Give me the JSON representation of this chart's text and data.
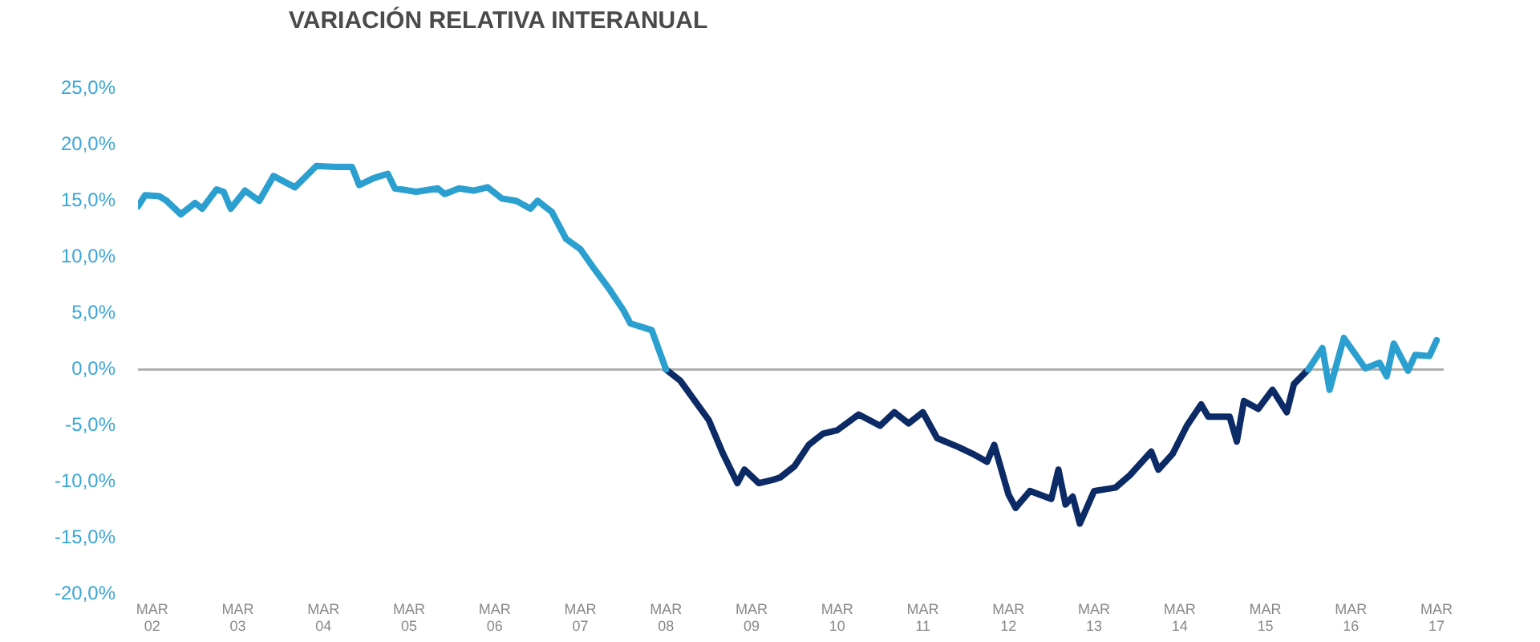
{
  "chart_data": {
    "type": "line",
    "title": "VARIACIÓN RELATIVA INTERANUAL",
    "x": [
      "2002-01",
      "2002-02",
      "2002-04",
      "2002-05",
      "2002-07",
      "2002-09",
      "2002-10",
      "2002-12",
      "2003-01",
      "2003-02",
      "2003-04",
      "2003-06",
      "2003-08",
      "2003-11",
      "2004-02",
      "2004-05",
      "2004-07",
      "2004-08",
      "2004-10",
      "2004-12",
      "2005-01",
      "2005-04",
      "2005-07",
      "2005-08",
      "2005-10",
      "2005-12",
      "2006-02",
      "2006-04",
      "2006-06",
      "2006-08",
      "2006-09",
      "2006-11",
      "2007-01",
      "2007-03",
      "2007-05",
      "2007-07",
      "2007-09",
      "2007-10",
      "2008-01",
      "2008-03",
      "2008-05",
      "2008-09",
      "2008-11",
      "2009-01",
      "2009-02",
      "2009-04",
      "2009-06",
      "2009-07",
      "2009-09",
      "2009-11",
      "2010-01",
      "2010-03",
      "2010-06",
      "2010-09",
      "2010-11",
      "2011-01",
      "2011-03",
      "2011-05",
      "2011-08",
      "2011-10",
      "2011-12",
      "2012-01",
      "2012-03",
      "2012-04",
      "2012-06",
      "2012-09",
      "2012-10",
      "2012-11",
      "2012-12",
      "2013-01",
      "2013-03",
      "2013-06",
      "2013-08",
      "2013-11",
      "2013-12",
      "2014-02",
      "2014-04",
      "2014-06",
      "2014-07",
      "2014-10",
      "2014-11",
      "2014-12",
      "2015-02",
      "2015-04",
      "2015-06",
      "2015-07",
      "2015-09",
      "2015-11",
      "2015-12",
      "2016-02",
      "2016-05",
      "2016-07",
      "2016-08",
      "2016-09",
      "2016-11",
      "2016-12",
      "2017-02",
      "2017-03"
    ],
    "series": [
      {
        "color": "#2a9fd0",
        "values": [
          14.5,
          15.5,
          15.4,
          15.0,
          13.8,
          14.8,
          14.3,
          16.0,
          15.8,
          14.3,
          15.9,
          15.0,
          17.2,
          16.2,
          18.1,
          18.0,
          18.0,
          16.4,
          17.0,
          17.4,
          16.1,
          15.8,
          16.1,
          15.6,
          16.1,
          15.9,
          16.2,
          15.2,
          15.0,
          14.3,
          15.0,
          14.0,
          11.6,
          10.7,
          8.9,
          7.2,
          5.3,
          4.1,
          3.5,
          0.0,
          null,
          null,
          null,
          null,
          null,
          null,
          null,
          null,
          null,
          null,
          null,
          null,
          null,
          null,
          null,
          null,
          null,
          null,
          null,
          null,
          null,
          null,
          null,
          null,
          null,
          null,
          null,
          null,
          null,
          null,
          null,
          null,
          null,
          null,
          null,
          null,
          null,
          null,
          null,
          null,
          null,
          null,
          null,
          null,
          null,
          null,
          0.0,
          1.9,
          -1.8,
          2.8,
          0.1,
          0.6,
          -0.6,
          2.3,
          -0.1,
          1.3,
          1.2,
          2.6
        ]
      },
      {
        "color": "#0b2a66",
        "values": [
          null,
          null,
          null,
          null,
          null,
          null,
          null,
          null,
          null,
          null,
          null,
          null,
          null,
          null,
          null,
          null,
          null,
          null,
          null,
          null,
          null,
          null,
          null,
          null,
          null,
          null,
          null,
          null,
          null,
          null,
          null,
          null,
          null,
          null,
          null,
          null,
          null,
          null,
          null,
          0.0,
          -1.0,
          -4.5,
          -7.5,
          -10.1,
          -8.9,
          -10.1,
          -9.8,
          -9.6,
          -8.6,
          -6.7,
          -5.7,
          -5.4,
          -4.0,
          -5.0,
          -3.8,
          -4.8,
          -3.8,
          -6.1,
          -6.9,
          -7.5,
          -8.2,
          -6.7,
          -11.1,
          -12.3,
          -10.8,
          -11.5,
          -8.9,
          -12.0,
          -11.3,
          -13.7,
          -10.8,
          -10.5,
          -9.4,
          -7.3,
          -8.9,
          -7.5,
          -5.0,
          -3.1,
          -4.2,
          -4.2,
          -6.4,
          -2.8,
          -3.5,
          -1.8,
          -3.8,
          -1.3,
          0.0,
          null,
          null,
          null,
          null,
          null,
          null,
          null,
          null,
          null,
          null,
          null
        ]
      }
    ],
    "xlim": [
      "2002-01",
      "2017-04"
    ],
    "xticks": [
      {
        "value": "2002-03",
        "label": "MAR 02"
      },
      {
        "value": "2003-03",
        "label": "MAR 03"
      },
      {
        "value": "2004-03",
        "label": "MAR 04"
      },
      {
        "value": "2005-03",
        "label": "MAR 05"
      },
      {
        "value": "2006-03",
        "label": "MAR 06"
      },
      {
        "value": "2007-03",
        "label": "MAR 07"
      },
      {
        "value": "2008-03",
        "label": "MAR 08"
      },
      {
        "value": "2009-03",
        "label": "MAR 09"
      },
      {
        "value": "2010-03",
        "label": "MAR 10"
      },
      {
        "value": "2011-03",
        "label": "MAR 11"
      },
      {
        "value": "2012-03",
        "label": "MAR 12"
      },
      {
        "value": "2013-03",
        "label": "MAR 13"
      },
      {
        "value": "2014-03",
        "label": "MAR 14"
      },
      {
        "value": "2015-03",
        "label": "MAR 15"
      },
      {
        "value": "2016-03",
        "label": "MAR 16"
      },
      {
        "value": "2017-03",
        "label": "MAR 17"
      }
    ],
    "ylim": [
      -20,
      25
    ],
    "yticks": [
      {
        "value": 25,
        "label": "25,0%"
      },
      {
        "value": 20,
        "label": "20,0%"
      },
      {
        "value": 15,
        "label": "15,0%"
      },
      {
        "value": 10,
        "label": "10,0%"
      },
      {
        "value": 5,
        "label": "5,0%"
      },
      {
        "value": 0,
        "label": "0,0%"
      },
      {
        "value": -5,
        "label": "-5,0%"
      },
      {
        "value": -10,
        "label": "-10,0%"
      },
      {
        "value": -15,
        "label": "-15,0%"
      },
      {
        "value": -20,
        "label": "-20,0%"
      }
    ],
    "ref_lines": [
      {
        "axis": "y",
        "value": 0,
        "color": "#b0b0b0"
      }
    ],
    "grid": false,
    "legend": false,
    "marker": "none",
    "line_style": "solid"
  }
}
